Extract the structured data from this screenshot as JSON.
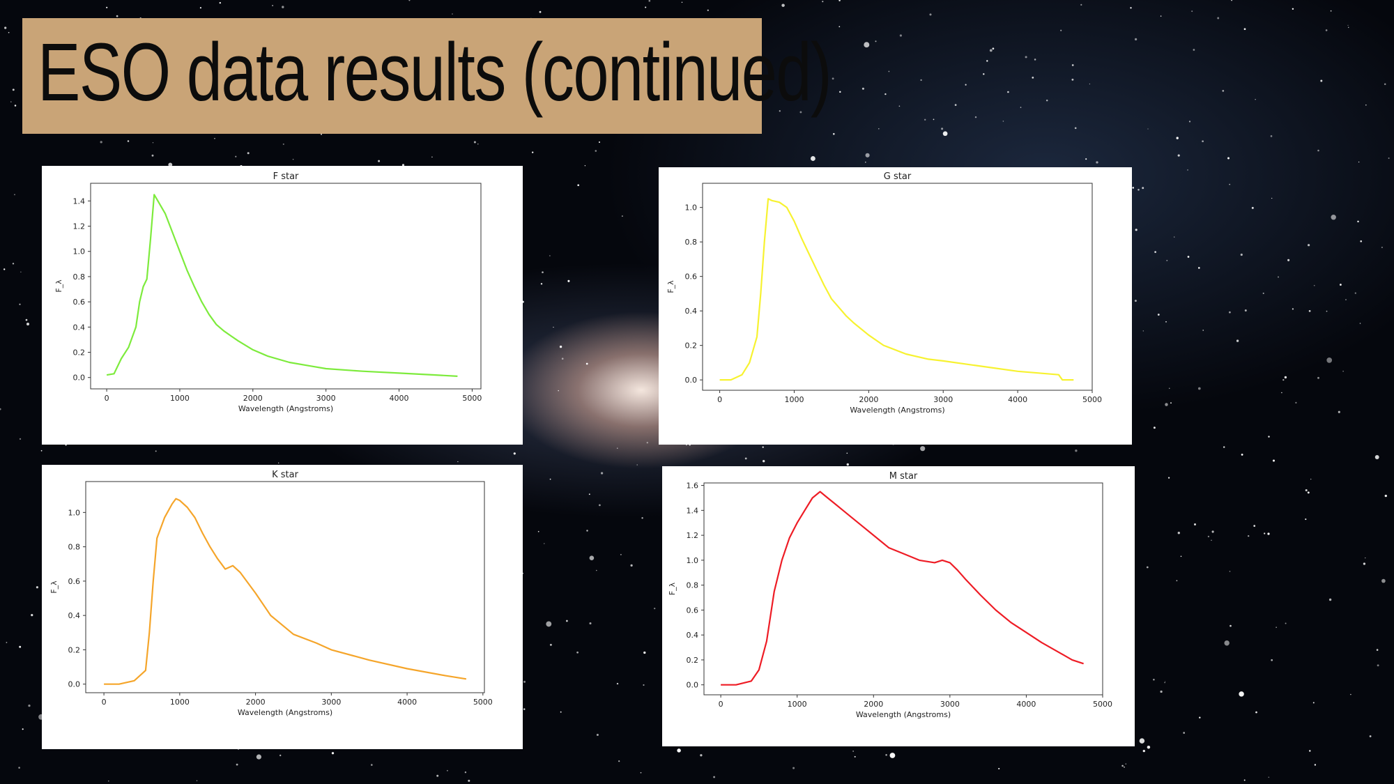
{
  "slide": {
    "title": "ESO data results (continued)"
  },
  "chart_data": [
    {
      "id": "f",
      "type": "line",
      "title": "F star",
      "color": "#7deb3c",
      "xlabel": "Wavelength (Angstroms)",
      "ylabel": "F_λ",
      "xlim": [
        -220,
        5120
      ],
      "ylim": [
        -0.09,
        1.54
      ],
      "xticks": [
        0,
        1000,
        2000,
        3000,
        4000,
        5000
      ],
      "yticks": [
        0.0,
        0.2,
        0.4,
        0.6,
        0.8,
        1.0,
        1.2,
        1.4
      ],
      "yprecision": 1,
      "x": [
        0,
        100,
        200,
        300,
        400,
        450,
        500,
        550,
        600,
        650,
        700,
        800,
        900,
        1000,
        1100,
        1200,
        1300,
        1400,
        1500,
        1600,
        1700,
        1800,
        2000,
        2200,
        2500,
        2800,
        3000,
        3500,
        4000,
        4500,
        4800
      ],
      "values": [
        0.02,
        0.03,
        0.15,
        0.24,
        0.4,
        0.6,
        0.72,
        0.78,
        1.1,
        1.45,
        1.4,
        1.3,
        1.15,
        1.0,
        0.85,
        0.72,
        0.6,
        0.5,
        0.42,
        0.37,
        0.33,
        0.29,
        0.22,
        0.17,
        0.12,
        0.09,
        0.07,
        0.05,
        0.035,
        0.02,
        0.01
      ]
    },
    {
      "id": "g",
      "type": "line",
      "title": "G star",
      "color": "#f7f230",
      "xlabel": "Wavelength (Angstroms)",
      "ylabel": "F_λ",
      "xlim": [
        -230,
        5000
      ],
      "ylim": [
        -0.06,
        1.14
      ],
      "xticks": [
        0,
        1000,
        2000,
        3000,
        4000,
        5000
      ],
      "yticks": [
        0.0,
        0.2,
        0.4,
        0.6,
        0.8,
        1.0
      ],
      "yprecision": 1,
      "x": [
        0,
        150,
        300,
        400,
        500,
        550,
        600,
        650,
        700,
        800,
        900,
        1000,
        1100,
        1200,
        1300,
        1400,
        1500,
        1600,
        1700,
        1800,
        2000,
        2200,
        2500,
        2800,
        3000,
        3500,
        4000,
        4550,
        4600,
        4750
      ],
      "values": [
        0.0,
        0.0,
        0.03,
        0.1,
        0.25,
        0.5,
        0.8,
        1.05,
        1.04,
        1.03,
        1.0,
        0.92,
        0.82,
        0.73,
        0.64,
        0.55,
        0.47,
        0.42,
        0.37,
        0.33,
        0.26,
        0.2,
        0.15,
        0.12,
        0.11,
        0.08,
        0.05,
        0.03,
        0.0,
        0.0
      ]
    },
    {
      "id": "k",
      "type": "line",
      "title": "K star",
      "color": "#f5a52a",
      "xlabel": "Wavelength (Angstroms)",
      "ylabel": "F_λ",
      "xlim": [
        -240,
        5020
      ],
      "ylim": [
        -0.05,
        1.18
      ],
      "xticks": [
        0,
        1000,
        2000,
        3000,
        4000,
        5000
      ],
      "yticks": [
        0.0,
        0.2,
        0.4,
        0.6,
        0.8,
        1.0
      ],
      "yprecision": 1,
      "x": [
        0,
        200,
        400,
        500,
        550,
        600,
        650,
        700,
        800,
        900,
        950,
        1000,
        1100,
        1200,
        1300,
        1400,
        1500,
        1550,
        1600,
        1700,
        1800,
        2000,
        2200,
        2500,
        2800,
        3000,
        3500,
        4000,
        4500,
        4780
      ],
      "values": [
        0.0,
        0.0,
        0.02,
        0.06,
        0.08,
        0.3,
        0.6,
        0.85,
        0.97,
        1.05,
        1.08,
        1.07,
        1.03,
        0.97,
        0.88,
        0.8,
        0.73,
        0.7,
        0.67,
        0.69,
        0.65,
        0.53,
        0.4,
        0.29,
        0.24,
        0.2,
        0.14,
        0.09,
        0.05,
        0.03
      ]
    },
    {
      "id": "m",
      "type": "line",
      "title": "M star",
      "color": "#ee1c25",
      "xlabel": "Wavelength (Angstroms)",
      "ylabel": "F_λ",
      "xlim": [
        -220,
        5000
      ],
      "ylim": [
        -0.08,
        1.62
      ],
      "xticks": [
        0,
        1000,
        2000,
        3000,
        4000,
        5000
      ],
      "yticks": [
        0.0,
        0.2,
        0.4,
        0.6,
        0.8,
        1.0,
        1.2,
        1.4,
        1.6
      ],
      "yprecision": 1,
      "x": [
        0,
        200,
        400,
        500,
        600,
        700,
        800,
        900,
        1000,
        1100,
        1200,
        1300,
        1400,
        1500,
        1600,
        1700,
        1800,
        2000,
        2200,
        2400,
        2600,
        2800,
        2900,
        3000,
        3100,
        3200,
        3400,
        3600,
        3800,
        4000,
        4200,
        4400,
        4600,
        4750
      ],
      "values": [
        0.0,
        0.0,
        0.03,
        0.12,
        0.35,
        0.75,
        1.0,
        1.18,
        1.3,
        1.4,
        1.5,
        1.55,
        1.5,
        1.45,
        1.4,
        1.35,
        1.3,
        1.2,
        1.1,
        1.05,
        1.0,
        0.98,
        1.0,
        0.98,
        0.92,
        0.85,
        0.72,
        0.6,
        0.5,
        0.42,
        0.34,
        0.27,
        0.2,
        0.17
      ]
    }
  ]
}
